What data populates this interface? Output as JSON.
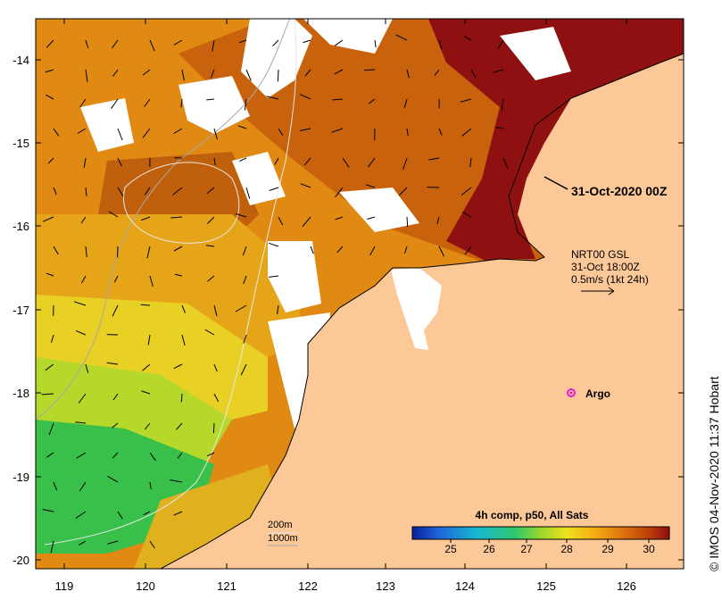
{
  "map": {
    "lon_ticks": [
      "119",
      "120",
      "121",
      "122",
      "123",
      "124",
      "125",
      "126"
    ],
    "lat_ticks": [
      "-14",
      "-15",
      "-16",
      "-17",
      "-18",
      "-19",
      "-20"
    ],
    "lon_range": [
      118.7,
      126.7
    ],
    "lat_range": [
      -20.1,
      -13.6
    ],
    "land_color": "#fcc898",
    "cloud_color": "#ffffff"
  },
  "annotations": {
    "track_label": "31-Oct-2020 00Z",
    "gsl_line1": "NRT00 GSL",
    "gsl_line2": "31-Oct 18:00Z",
    "gsl_line3": "0.5m/s (1kt 24h)",
    "argo_label": "Argo",
    "isobath_200": "200m",
    "isobath_1000": "1000m"
  },
  "colorbar": {
    "title": "4h comp, p50, All Sats",
    "ticks": [
      "25",
      "26",
      "27",
      "28",
      "29",
      "30"
    ],
    "range": [
      24,
      30.6
    ],
    "colors": [
      "#0a1f9c",
      "#1e64d8",
      "#18b6d2",
      "#2fc86e",
      "#9ad82c",
      "#f0e020",
      "#f4a812",
      "#d8680e",
      "#b83a08",
      "#8e0c10"
    ]
  },
  "credit": "IMOS 04-Nov-2020 11:37 Hobart",
  "credit_symbol": "©"
}
